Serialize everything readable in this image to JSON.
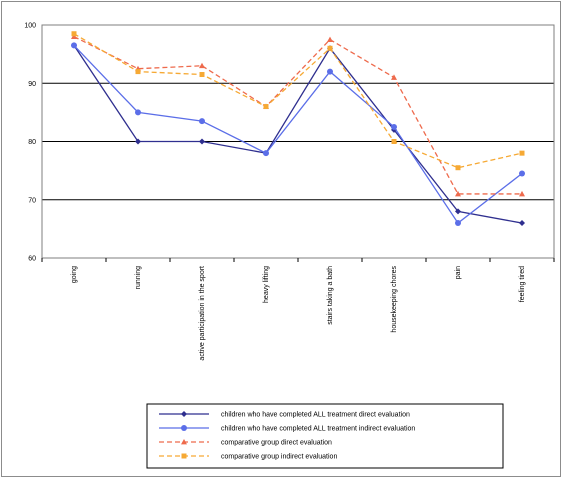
{
  "chart_data": {
    "type": "line",
    "categories": [
      "going",
      "running",
      "active participation in the sport",
      "heavy lifting",
      "stairs taking a bath",
      "housekeeping chores",
      "pain",
      "feeling tired"
    ],
    "ylim": [
      60,
      100
    ],
    "yticks": [
      60,
      70,
      80,
      90,
      100
    ],
    "grid": "horizontal major gridlines",
    "legend_position": "bottom",
    "series": [
      {
        "name": "children who have completed ALL treatment direct evaluation",
        "color": "#2f2f8f",
        "style": "solid",
        "marker": "diamond",
        "values": [
          96.5,
          80,
          80,
          78,
          96,
          82,
          68,
          66
        ]
      },
      {
        "name": "children who have completed ALL treatment indirect evaluation",
        "color": "#5b6ee8",
        "style": "solid",
        "marker": "circle",
        "values": [
          96.5,
          85,
          83.5,
          78,
          92,
          82.5,
          66,
          74.5
        ]
      },
      {
        "name": "comparative group direct evaluation",
        "color": "#ee6a4c",
        "style": "dashed",
        "marker": "triangle",
        "values": [
          98,
          92.5,
          93,
          86,
          97.5,
          91,
          71,
          71
        ]
      },
      {
        "name": "comparative group indirect evaluation",
        "color": "#f6a934",
        "style": "dashed",
        "marker": "square",
        "values": [
          98.5,
          92,
          91.5,
          86,
          96,
          80,
          75.5,
          78
        ]
      }
    ]
  }
}
